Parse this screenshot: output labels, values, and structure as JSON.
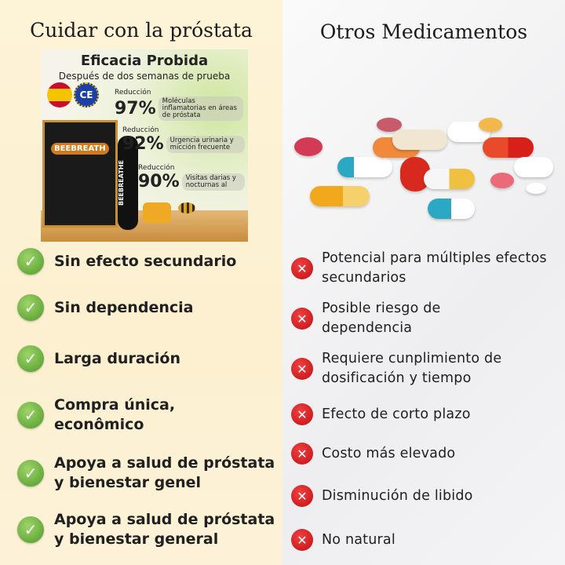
{
  "left": {
    "title": "Cuidar  con la próstata",
    "product": {
      "headline": "Eficacia Probida",
      "subheadline": "Después de dos semanas de prueba",
      "brand": "BEEBREATH",
      "stick_label": "BEEBREATHE",
      "stats": [
        {
          "label": "Reducción",
          "percent": "97%",
          "desc": "Moléculas inflamatorias en áreas de próstata"
        },
        {
          "label": "Reducción",
          "percent": "92%",
          "desc": "Urgencia urinaria y micción frecuente"
        },
        {
          "label": "Reducción",
          "percent": "90%",
          "desc": "Visitas darias y nocturnas al"
        }
      ]
    },
    "items": [
      "Sin efecto secundario",
      "Sin dependencia",
      "Larga duración",
      "Compra única, econômico",
      "Apoya a salud de próstata y bienestar genel",
      "Apoya a salud de próstata y bienestar general"
    ]
  },
  "right": {
    "title": "Otros Medicamentos",
    "items": [
      "Potencial para múltiples efectos secundarios",
      "Posible riesgo de dependencia",
      "Requiere cunplimiento de dosificación y tiempo",
      "Efecto de corto plazo",
      "Costo más elevado",
      "Disminución de libido",
      "No natural"
    ]
  },
  "icons": {
    "left": "check-circle-icon",
    "right": "x-circle-icon"
  },
  "colors": {
    "check": "#5aa832",
    "cross": "#d4151a",
    "left_bg": "#fcf0d0",
    "right_bg": "#f0f0f2"
  }
}
